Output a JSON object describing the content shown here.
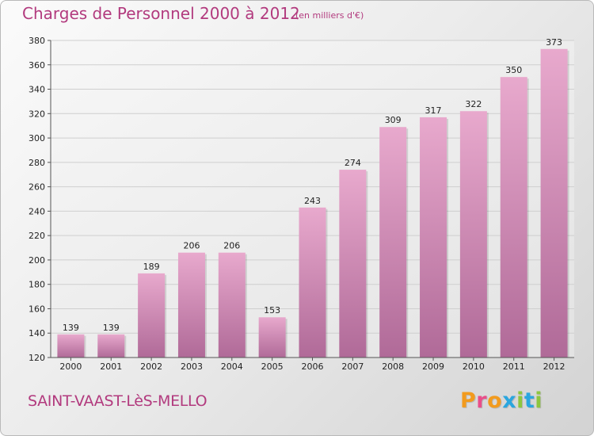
{
  "header": {
    "title": "Charges de Personnel 2000 à 2012",
    "unit_note": "(en milliers d'€)"
  },
  "footer": {
    "commune": "SAINT-VAAST-LèS-MELLO",
    "logo_letters": [
      "P",
      "r",
      "o",
      "x",
      "i",
      "t",
      "i"
    ]
  },
  "colors": {
    "accent": "#b23a7e",
    "bar_top": "#e8a9cd",
    "bar_bottom": "#b06a98",
    "logo": [
      "#f29b1e",
      "#e94e8a",
      "#f29b1e",
      "#2aa6df",
      "#8dc63f",
      "#2aa6df",
      "#8dc63f"
    ]
  },
  "chart_data": {
    "type": "bar",
    "categories": [
      "2000",
      "2001",
      "2002",
      "2003",
      "2004",
      "2005",
      "2006",
      "2007",
      "2008",
      "2009",
      "2010",
      "2011",
      "2012"
    ],
    "values": [
      139,
      139,
      189,
      206,
      206,
      153,
      243,
      274,
      309,
      317,
      322,
      350,
      373
    ],
    "title": "Charges de Personnel 2000 à 2012",
    "subtitle": "(en milliers d'€)",
    "xlabel": "",
    "ylabel": "",
    "ylim": [
      120,
      380
    ],
    "yticks": [
      120,
      140,
      160,
      180,
      200,
      220,
      240,
      260,
      280,
      300,
      320,
      340,
      360,
      380
    ],
    "grid": true,
    "legend": "none"
  }
}
